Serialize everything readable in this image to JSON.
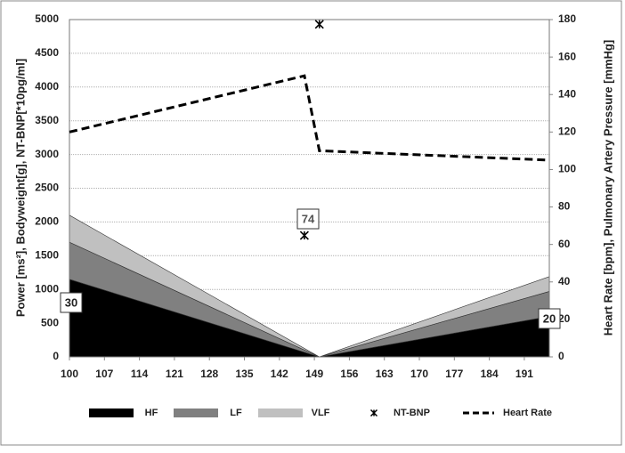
{
  "chart_data": {
    "type": "area",
    "stacked": true,
    "grid": true,
    "legend": "bottom",
    "ylabel": "Power [ms²], Bodyweight[g], NT-BNP[*10pg/ml]",
    "y2label": "Heart Rate [bpm], Pulmonary Artery Pressure [mmHg]",
    "xlim": [
      100,
      196
    ],
    "xticks": [
      100,
      107,
      114,
      121,
      128,
      135,
      142,
      149,
      156,
      163,
      170,
      177,
      184,
      191
    ],
    "ylim": [
      0,
      5000
    ],
    "yticks": [
      0,
      500,
      1000,
      1500,
      2000,
      2500,
      3000,
      3500,
      4000,
      4500,
      5000
    ],
    "y2lim": [
      0,
      180
    ],
    "y2ticks": [
      0,
      20,
      40,
      60,
      80,
      100,
      120,
      140,
      160,
      180
    ],
    "series": [
      {
        "name": "HF",
        "type": "area",
        "color": "#000000",
        "x": [
          100,
          150,
          196
        ],
        "values": [
          1150,
          0,
          600
        ]
      },
      {
        "name": "LF",
        "type": "area",
        "color": "#808080",
        "x": [
          100,
          150,
          196
        ],
        "values": [
          550,
          0,
          370
        ]
      },
      {
        "name": "VLF",
        "type": "area",
        "color": "#c0c0c0",
        "x": [
          100,
          150,
          196
        ],
        "values": [
          400,
          0,
          220
        ]
      },
      {
        "name": "NT-BNP",
        "type": "scatter",
        "color": "#000000",
        "x": [
          147,
          150
        ],
        "values": [
          1800,
          4930
        ]
      },
      {
        "name": "Heart Rate",
        "type": "line",
        "axis": "y2",
        "color": "#000000",
        "dashed": true,
        "x": [
          100,
          147,
          150,
          196
        ],
        "values": [
          120,
          150,
          110,
          105
        ]
      }
    ],
    "annotations": [
      "30",
      "74",
      "20"
    ]
  }
}
